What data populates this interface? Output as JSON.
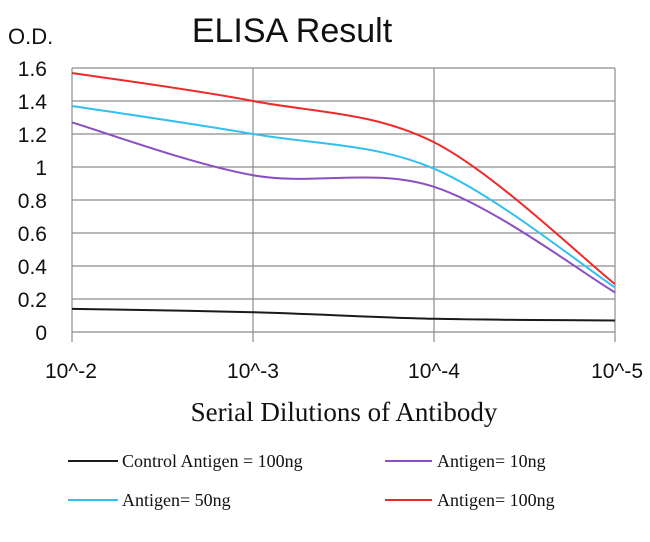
{
  "chart_data": {
    "type": "line",
    "title": "ELISA Result",
    "ylabel": "O.D.",
    "xlabel": "Serial Dilutions of Antibody",
    "x": [
      "10^-2",
      "10^-3",
      "10^-4",
      "10^-5"
    ],
    "ylim": [
      0,
      1.6
    ],
    "yticks": [
      "0",
      "0.2",
      "0.4",
      "0.6",
      "0.8",
      "1",
      "1.2",
      "1.4",
      "1.6"
    ],
    "grid": true,
    "legend_position": "bottom",
    "series": [
      {
        "name": "Control Antigen = 100ng",
        "color": "#1a1a1a",
        "values": [
          0.14,
          0.12,
          0.08,
          0.07
        ]
      },
      {
        "name": "Antigen= 10ng",
        "color": "#8a4fc4",
        "values": [
          1.27,
          0.95,
          0.88,
          0.24
        ]
      },
      {
        "name": "Antigen= 50ng",
        "color": "#33bff0",
        "values": [
          1.37,
          1.2,
          0.99,
          0.27
        ]
      },
      {
        "name": "Antigen= 100ng",
        "color": "#ee2a2a",
        "values": [
          1.57,
          1.4,
          1.15,
          0.29
        ]
      }
    ]
  }
}
